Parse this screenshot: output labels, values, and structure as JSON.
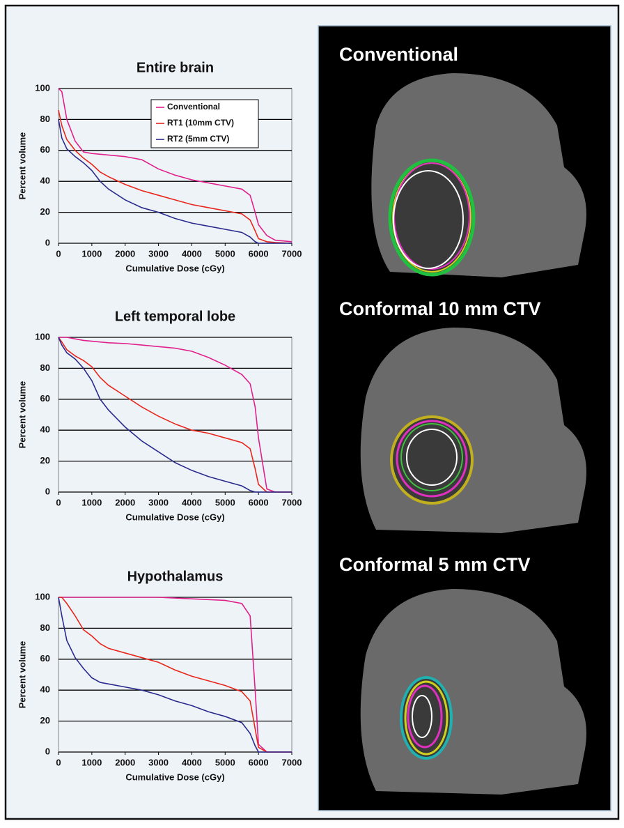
{
  "chart_data": [
    {
      "type": "line",
      "title": "Entire brain",
      "xlabel": "Cumulative Dose (cGy)",
      "ylabel": "Percent volume",
      "x": [
        0,
        100,
        250,
        500,
        750,
        1000,
        1250,
        1500,
        2000,
        2500,
        3000,
        3500,
        4000,
        4500,
        5000,
        5500,
        5750,
        5900,
        6000,
        6250,
        6500,
        7000
      ],
      "series": [
        {
          "name": "Conventional",
          "color": "#e0208c",
          "values": [
            100,
            98,
            80,
            66,
            59,
            58,
            57.5,
            57,
            56,
            54,
            48,
            44,
            41,
            39,
            37,
            35,
            31,
            20,
            12,
            5,
            2,
            1
          ]
        },
        {
          "name": "RT1 (10mm CTV)",
          "color": "#e8261c",
          "values": [
            86,
            76,
            67,
            60,
            55,
            51,
            46,
            43,
            38,
            34,
            31,
            28,
            25,
            23,
            21,
            19,
            15,
            8,
            3,
            1,
            0.5,
            0
          ]
        },
        {
          "name": "RT2 (5mm CTV)",
          "color": "#2a2a8c",
          "values": [
            80,
            68,
            61,
            56,
            52,
            47,
            40,
            35,
            28,
            23,
            20,
            16,
            13,
            11,
            9,
            7,
            4,
            1,
            0,
            0,
            0,
            0
          ]
        }
      ],
      "xlim": [
        0,
        7000
      ],
      "xticks": [
        0,
        1000,
        2000,
        3000,
        4000,
        5000,
        6000,
        7000
      ],
      "ylim": [
        0,
        100
      ],
      "yticks": [
        0,
        20,
        40,
        60,
        80,
        100
      ],
      "grid": true,
      "legend": "top-right"
    },
    {
      "type": "line",
      "title": "Left temporal lobe",
      "xlabel": "Cumulative Dose (cGy)",
      "ylabel": "Percent volume",
      "x": [
        0,
        100,
        250,
        500,
        750,
        1000,
        1250,
        1500,
        2000,
        2500,
        3000,
        3500,
        4000,
        4500,
        5000,
        5500,
        5750,
        5900,
        6000,
        6250,
        6500,
        7000
      ],
      "series": [
        {
          "color": "#e0208c",
          "values": [
            100,
            100,
            100,
            99,
            98,
            97.5,
            97,
            96.5,
            96,
            95,
            94,
            93,
            91,
            87,
            82,
            76,
            70,
            55,
            35,
            2,
            0,
            0
          ]
        },
        {
          "color": "#e8261c",
          "values": [
            100,
            97,
            92,
            88,
            85,
            81,
            74,
            69,
            62,
            55,
            49,
            44,
            40,
            38,
            35,
            32,
            28,
            15,
            5,
            0,
            0,
            0
          ]
        },
        {
          "color": "#2a2a8c",
          "values": [
            100,
            95,
            90,
            86,
            80,
            72,
            60,
            53,
            42,
            33,
            26,
            19,
            14,
            10,
            7,
            4,
            1,
            0,
            0,
            0,
            0,
            0
          ]
        }
      ],
      "xlim": [
        0,
        7000
      ],
      "xticks": [
        0,
        1000,
        2000,
        3000,
        4000,
        5000,
        6000,
        7000
      ],
      "ylim": [
        0,
        100
      ],
      "yticks": [
        0,
        20,
        40,
        60,
        80,
        100
      ],
      "grid": true
    },
    {
      "type": "line",
      "title": "Hypothalamus",
      "xlabel": "Cumulative Dose (cGy)",
      "ylabel": "Percent volume",
      "x": [
        0,
        100,
        250,
        500,
        750,
        1000,
        1250,
        1500,
        2000,
        2500,
        3000,
        3500,
        4000,
        4500,
        5000,
        5500,
        5750,
        5900,
        6000,
        6250,
        6500,
        7000
      ],
      "series": [
        {
          "color": "#e0208c",
          "values": [
            100,
            100,
            100,
            100,
            100,
            100,
            100,
            100,
            100,
            100,
            100,
            99.5,
            99,
            98.5,
            98,
            96,
            88,
            40,
            5,
            0,
            0,
            0
          ]
        },
        {
          "color": "#e8261c",
          "values": [
            100,
            100,
            96,
            88,
            79,
            75,
            70,
            67,
            64,
            61,
            58,
            53,
            49,
            46,
            43,
            39,
            33,
            15,
            3,
            0,
            0,
            0
          ]
        },
        {
          "color": "#2a2a8c",
          "values": [
            100,
            88,
            72,
            61,
            54,
            48,
            45,
            44,
            42,
            40,
            37,
            33,
            30,
            26,
            23,
            19,
            12,
            4,
            0,
            0,
            0,
            0
          ]
        }
      ],
      "xlim": [
        0,
        7000
      ],
      "xticks": [
        0,
        1000,
        2000,
        3000,
        4000,
        5000,
        6000,
        7000
      ],
      "ylim": [
        0,
        100
      ],
      "yticks": [
        0,
        20,
        40,
        60,
        80,
        100
      ],
      "grid": true
    }
  ],
  "images": {
    "captions": [
      "Conventional",
      "Conformal 10 mm CTV",
      "Conformal 5 mm CTV"
    ]
  }
}
